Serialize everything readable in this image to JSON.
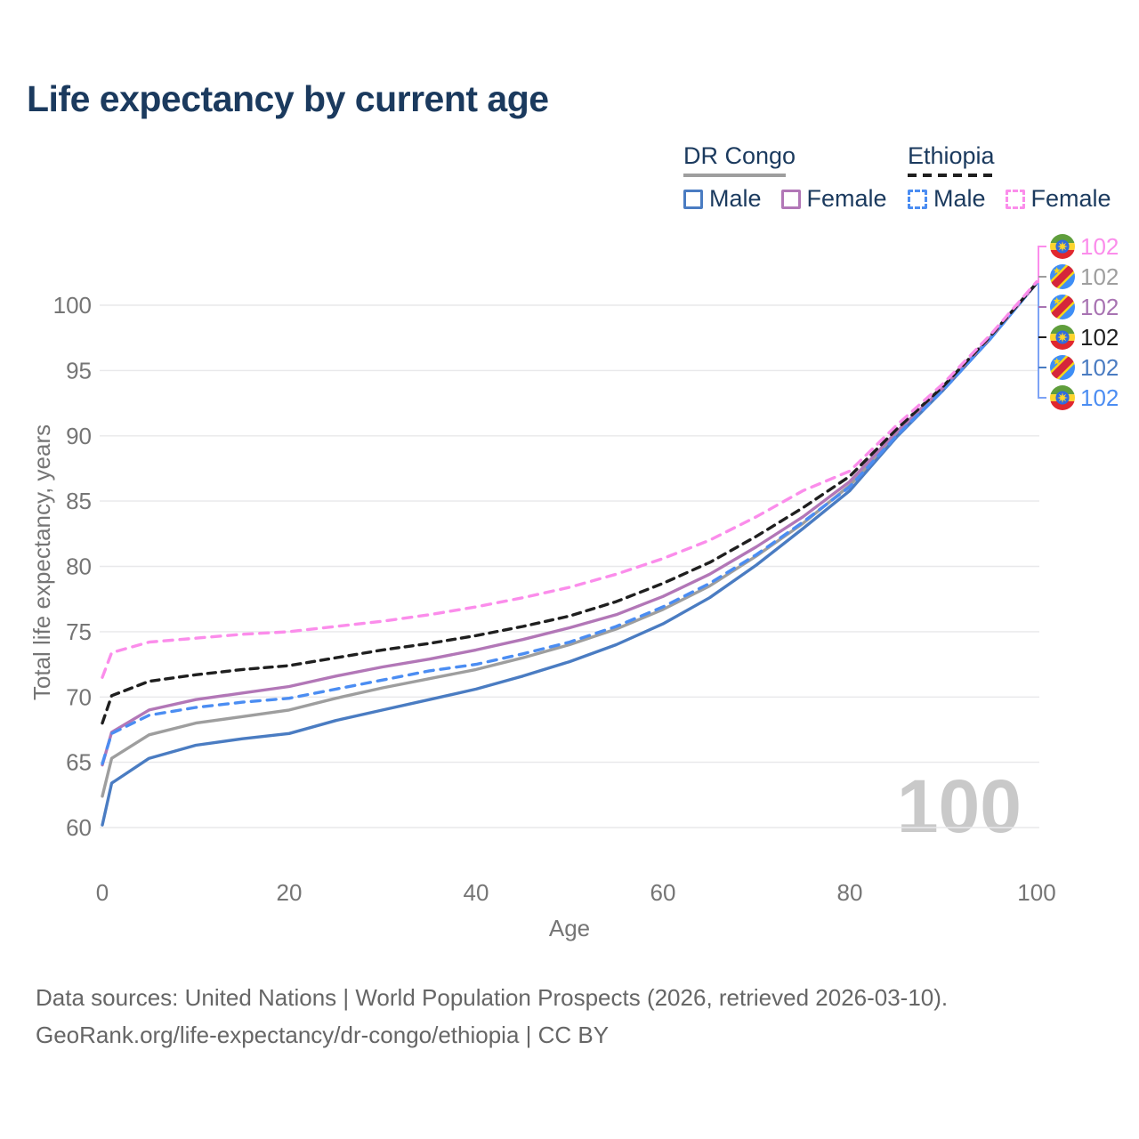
{
  "title": "Life expectancy by current age",
  "legend": {
    "groups": [
      {
        "label": "DR Congo",
        "line_style": "solid",
        "underline_color": "#9e9e9e",
        "items": [
          {
            "label": "Male",
            "color": "#4a7cc2",
            "style": "solid"
          },
          {
            "label": "Female",
            "color": "#b277b7",
            "style": "solid"
          }
        ]
      },
      {
        "label": "Ethiopia",
        "line_style": "dashed",
        "underline_color": "#1f1f1f",
        "items": [
          {
            "label": "Male",
            "color": "#4b8df2",
            "style": "dashed"
          },
          {
            "label": "Female",
            "color": "#fb8deb",
            "style": "dashed"
          }
        ]
      }
    ]
  },
  "chart_data": {
    "type": "line",
    "title": "Life expectancy by current age",
    "xlabel": "Age",
    "ylabel": "Total life expectancy, years",
    "x": [
      0,
      1,
      5,
      10,
      15,
      20,
      25,
      30,
      35,
      40,
      45,
      50,
      55,
      60,
      65,
      70,
      75,
      80,
      85,
      90,
      95,
      100
    ],
    "xticks": [
      0,
      20,
      40,
      60,
      80,
      100
    ],
    "yticks": [
      60,
      65,
      70,
      75,
      80,
      85,
      90,
      95,
      100
    ],
    "xlim": [
      0,
      100
    ],
    "ylim": [
      59,
      103
    ],
    "grid": "horizontal-only",
    "legend_position": "top-right",
    "series": [
      {
        "name": "DR Congo Male",
        "country": "DR Congo",
        "sex": "Male",
        "style": "solid",
        "color": "#4a7cc2",
        "end_label": "102",
        "values": [
          60.2,
          63.4,
          65.3,
          66.3,
          66.8,
          67.2,
          68.2,
          69.0,
          69.8,
          70.6,
          71.6,
          72.7,
          74.0,
          75.6,
          77.6,
          80.1,
          82.9,
          85.8,
          89.9,
          93.5,
          97.4,
          101.7
        ]
      },
      {
        "name": "DR Congo (country line)",
        "country": "DR Congo",
        "sex": "All",
        "style": "solid",
        "color": "#9e9e9e",
        "end_label": "102",
        "values": [
          62.4,
          65.3,
          67.1,
          68.0,
          68.5,
          69.0,
          69.9,
          70.7,
          71.4,
          72.1,
          73.0,
          74.0,
          75.2,
          76.7,
          78.5,
          80.8,
          83.3,
          86.2,
          90.1,
          93.6,
          97.5,
          101.7
        ]
      },
      {
        "name": "DR Congo Female",
        "country": "DR Congo",
        "sex": "Female",
        "style": "solid",
        "color": "#b277b7",
        "end_label": "102",
        "values": [
          64.8,
          67.3,
          69.0,
          69.8,
          70.3,
          70.8,
          71.6,
          72.3,
          72.9,
          73.6,
          74.4,
          75.3,
          76.3,
          77.7,
          79.4,
          81.5,
          83.8,
          86.5,
          90.3,
          93.7,
          97.5,
          101.7
        ]
      },
      {
        "name": "Ethiopia Male",
        "country": "Ethiopia",
        "sex": "Male",
        "style": "dashed",
        "color": "#4b8df2",
        "end_label": "102",
        "values": [
          64.9,
          67.2,
          68.6,
          69.2,
          69.6,
          69.9,
          70.6,
          71.3,
          72.0,
          72.5,
          73.3,
          74.2,
          75.4,
          76.9,
          78.7,
          80.9,
          83.4,
          86.1,
          90.0,
          93.5,
          97.4,
          101.7
        ]
      },
      {
        "name": "Ethiopia (country line)",
        "country": "Ethiopia",
        "sex": "All",
        "style": "dashed",
        "color": "#1f1f1f",
        "end_label": "102",
        "values": [
          68.0,
          70.1,
          71.2,
          71.7,
          72.1,
          72.4,
          73.0,
          73.6,
          74.1,
          74.7,
          75.4,
          76.2,
          77.3,
          78.7,
          80.3,
          82.3,
          84.5,
          86.9,
          90.5,
          93.8,
          97.6,
          101.7
        ]
      },
      {
        "name": "Ethiopia Female",
        "country": "Ethiopia",
        "sex": "Female",
        "style": "dashed",
        "color": "#fb8deb",
        "end_label": "102",
        "values": [
          71.5,
          73.4,
          74.2,
          74.5,
          74.8,
          75.0,
          75.4,
          75.8,
          76.3,
          76.9,
          77.6,
          78.4,
          79.4,
          80.6,
          82.0,
          83.8,
          85.8,
          87.3,
          90.8,
          94.0,
          97.7,
          101.8
        ]
      }
    ],
    "end_labels": [
      {
        "text": "102",
        "flag": "ethiopia-flag",
        "color": "#fb8deb",
        "series": "Ethiopia Female"
      },
      {
        "text": "102",
        "flag": "dr-congo-flag",
        "color": "#9e9e9e",
        "series": "DR Congo (country line)"
      },
      {
        "text": "102",
        "flag": "dr-congo-flag",
        "color": "#a873b2",
        "series": "DR Congo Female"
      },
      {
        "text": "102",
        "flag": "ethiopia-flag",
        "color": "#1f1f1f",
        "series": "Ethiopia (country line)"
      },
      {
        "text": "102",
        "flag": "dr-congo-flag",
        "color": "#4a7cc2",
        "series": "DR Congo Male"
      },
      {
        "text": "102",
        "flag": "ethiopia-flag",
        "color": "#4b8df2",
        "series": "Ethiopia Male"
      }
    ]
  },
  "annotations": {
    "watermark": "100"
  },
  "footer": {
    "line1": "Data sources: United Nations | World Population Prospects (2026, retrieved 2026-03-10).",
    "line2": "GeoRank.org/life-expectancy/dr-congo/ethiopia | CC BY"
  }
}
